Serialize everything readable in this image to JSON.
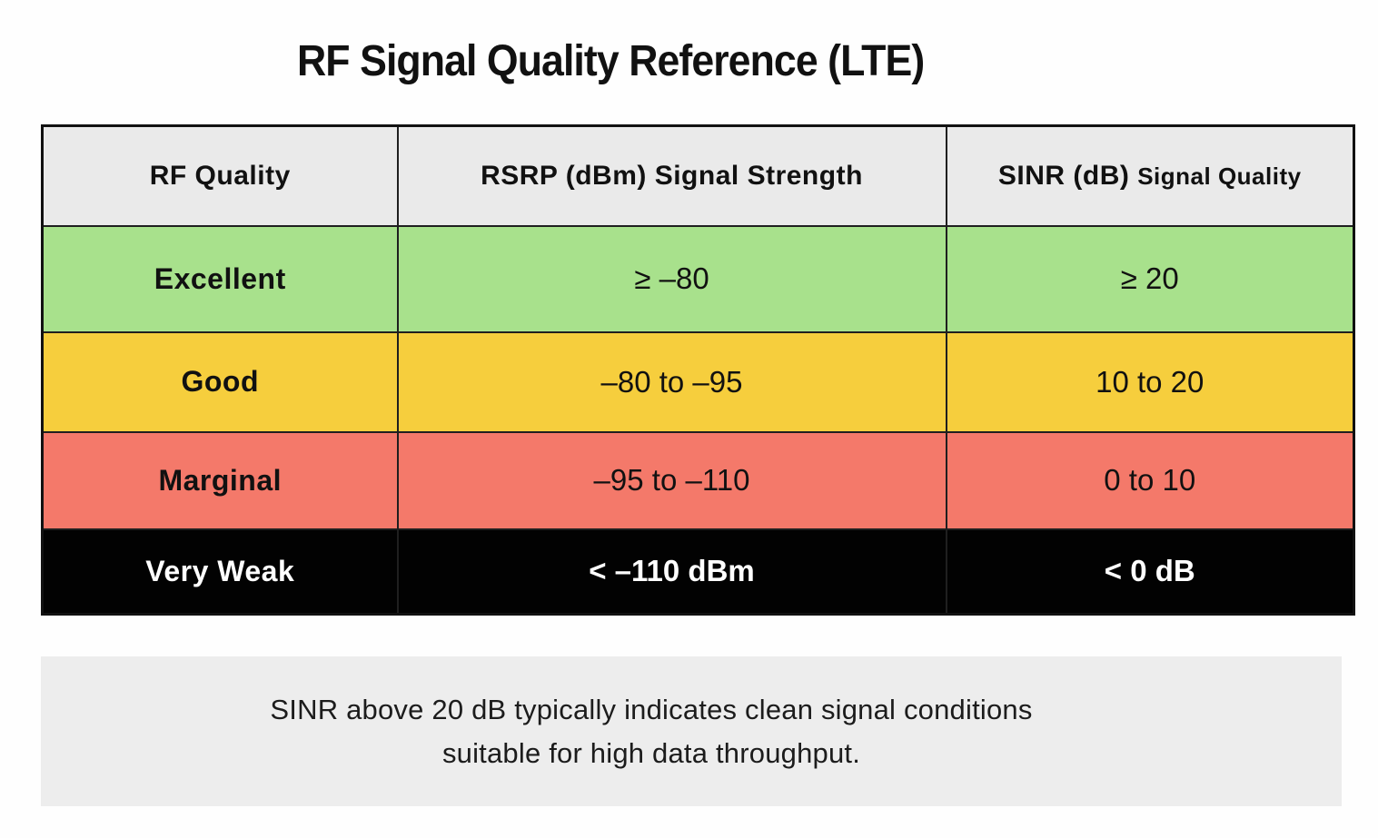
{
  "title": "RF Signal Quality Reference (LTE)",
  "table": {
    "headers": [
      {
        "label": "RF Quality"
      },
      {
        "label": "RSRP (dBm) Signal Strength"
      },
      {
        "main": "SINR (dB)",
        "sub": "Signal Quality"
      }
    ],
    "rows": [
      {
        "quality": "Excellent",
        "rsrp": "≥ –80",
        "sinr": "≥ 20",
        "bg": "#a8e18c",
        "fg": "#111111"
      },
      {
        "quality": "Good",
        "rsrp": "–80 to –95",
        "sinr": "10 to 20",
        "bg": "#f6ce3d",
        "fg": "#111111"
      },
      {
        "quality": "Marginal",
        "rsrp": "–95 to –110",
        "sinr": "0 to 10",
        "bg": "#f4796a",
        "fg": "#111111"
      },
      {
        "quality": "Very Weak",
        "rsrp": "< –110 dBm",
        "sinr": "< 0 dB",
        "bg": "#020202",
        "fg": "#ffffff"
      }
    ]
  },
  "note": {
    "line1": "SINR above 20 dB typically indicates clean signal conditions",
    "line2": "suitable for high data throughput."
  },
  "colors": {
    "page_background": "#fefefe",
    "header_background": "#eaeaea",
    "note_background": "#ededed",
    "table_border": "#1f1f1f",
    "excellent_green": "#a8e18c",
    "good_yellow": "#f6ce3d",
    "marginal_red": "#f4796a",
    "very_weak_black": "#020202"
  }
}
